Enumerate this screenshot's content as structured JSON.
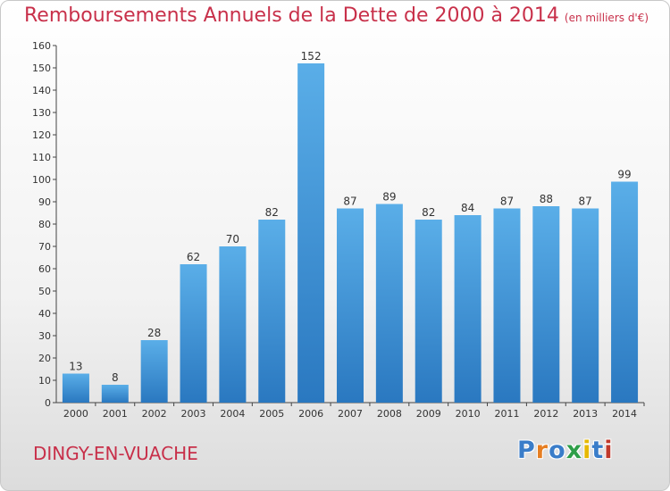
{
  "header": {
    "title": "Remboursements Annuels de la Dette de 2000 à 2014",
    "unit": "(en milliers d'€)"
  },
  "footer": {
    "town": "DINGY-EN-VUACHE",
    "logo": [
      "P",
      "r",
      "o",
      "x",
      "i",
      "t",
      "i"
    ],
    "logo_colors": [
      "#3a7dc9",
      "#e67e22",
      "#3a7dc9",
      "#2e9e48",
      "#e6b800",
      "#3a7dc9",
      "#c0392b"
    ]
  },
  "chart_data": {
    "type": "bar",
    "title": "Remboursements Annuels de la Dette de 2000 à 2014",
    "categories": [
      "2000",
      "2001",
      "2002",
      "2003",
      "2004",
      "2005",
      "2006",
      "2007",
      "2008",
      "2009",
      "2010",
      "2011",
      "2012",
      "2013",
      "2014"
    ],
    "values": [
      13,
      8,
      28,
      62,
      70,
      82,
      152,
      87,
      89,
      82,
      84,
      87,
      88,
      87,
      99
    ],
    "ylim": [
      0,
      160
    ],
    "yticks": [
      0,
      10,
      20,
      30,
      40,
      50,
      60,
      70,
      80,
      90,
      100,
      110,
      120,
      130,
      140,
      150,
      160
    ],
    "grid": false,
    "bar_color": "#4a9ee0"
  }
}
